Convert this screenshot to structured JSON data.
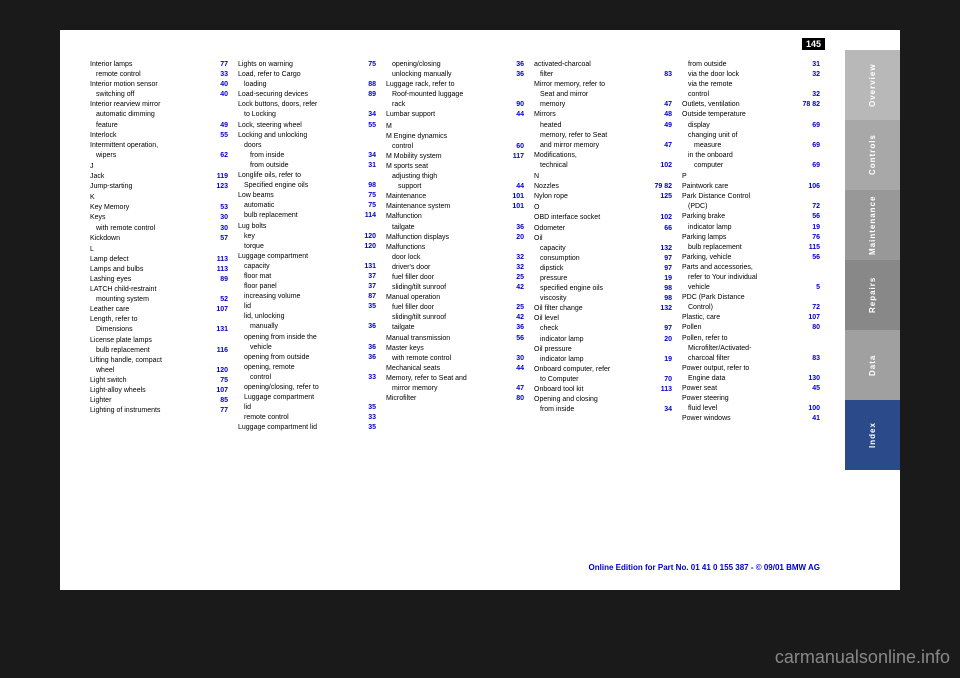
{
  "page_number": "145",
  "tabs": [
    "Overview",
    "Controls",
    "Maintenance",
    "Repairs",
    "Data",
    "Index"
  ],
  "footer": "Online Edition for Part No. 01 41 0 155 387 - © 09/01 BMW AG",
  "watermark": "carmanualsonline.info",
  "columns": [
    [
      {
        "t": "Interior lamps",
        "p": "77",
        "sub": 0
      },
      {
        "t": "remote control",
        "p": "33",
        "sub": 1
      },
      {
        "t": "Interior motion sensor",
        "p": "40",
        "sub": 0
      },
      {
        "t": "switching off",
        "p": "40",
        "sub": 1
      },
      {
        "t": "Interior rearview mirror",
        "p": "",
        "sub": 0
      },
      {
        "t": "automatic dimming",
        "p": "",
        "sub": 1
      },
      {
        "t": "feature",
        "p": "49",
        "sub": 1
      },
      {
        "t": "Interlock",
        "p": "55",
        "sub": 0
      },
      {
        "t": "Intermittent operation,",
        "p": "",
        "sub": 0
      },
      {
        "t": "wipers",
        "p": "62",
        "sub": 1
      },
      {
        "t": "",
        "p": "",
        "sub": 0
      },
      {
        "t": "J",
        "p": "",
        "sub": 0
      },
      {
        "t": "Jack",
        "p": "119",
        "sub": 0
      },
      {
        "t": "Jump-starting",
        "p": "123",
        "sub": 0
      },
      {
        "t": "",
        "p": "",
        "sub": 0
      },
      {
        "t": "K",
        "p": "",
        "sub": 0
      },
      {
        "t": "Key Memory",
        "p": "53",
        "sub": 0
      },
      {
        "t": "Keys",
        "p": "30",
        "sub": 0
      },
      {
        "t": "with remote control",
        "p": "30",
        "sub": 1
      },
      {
        "t": "Kickdown",
        "p": "57",
        "sub": 0
      },
      {
        "t": "",
        "p": "",
        "sub": 0
      },
      {
        "t": "L",
        "p": "",
        "sub": 0
      },
      {
        "t": "Lamp defect",
        "p": "113",
        "sub": 0
      },
      {
        "t": "Lamps and bulbs",
        "p": "113",
        "sub": 0
      },
      {
        "t": "Lashing eyes",
        "p": "89",
        "sub": 0
      },
      {
        "t": "LATCH child-restraint",
        "p": "",
        "sub": 0
      },
      {
        "t": "mounting system",
        "p": "52",
        "sub": 1
      },
      {
        "t": "Leather care",
        "p": "107",
        "sub": 0
      },
      {
        "t": "Length, refer to",
        "p": "",
        "sub": 0
      },
      {
        "t": "Dimensions",
        "p": "131",
        "sub": 1
      },
      {
        "t": "License plate lamps",
        "p": "",
        "sub": 0
      },
      {
        "t": "bulb replacement",
        "p": "116",
        "sub": 1
      },
      {
        "t": "Lifting handle, compact",
        "p": "",
        "sub": 0
      },
      {
        "t": "wheel",
        "p": "120",
        "sub": 1
      },
      {
        "t": "Light switch",
        "p": "75",
        "sub": 0
      },
      {
        "t": "Light-alloy wheels",
        "p": "107",
        "sub": 0
      },
      {
        "t": "Lighter",
        "p": "85",
        "sub": 0
      },
      {
        "t": "Lighting of instruments",
        "p": "77",
        "sub": 0
      }
    ],
    [
      {
        "t": "Lights on warning",
        "p": "75",
        "sub": 0
      },
      {
        "t": "Load, refer to Cargo",
        "p": "",
        "sub": 0
      },
      {
        "t": "loading",
        "p": "88",
        "sub": 1
      },
      {
        "t": "Load-securing devices",
        "p": "89",
        "sub": 0
      },
      {
        "t": "Lock buttons, doors, refer",
        "p": "",
        "sub": 0
      },
      {
        "t": "to Locking",
        "p": "34",
        "sub": 1
      },
      {
        "t": "Lock, steering wheel",
        "p": "55",
        "sub": 0
      },
      {
        "t": "Locking and unlocking",
        "p": "",
        "sub": 0
      },
      {
        "t": "doors",
        "p": "",
        "sub": 1
      },
      {
        "t": "from inside",
        "p": "34",
        "sub": 2
      },
      {
        "t": "from outside",
        "p": "31",
        "sub": 2
      },
      {
        "t": "Longlife oils, refer to",
        "p": "",
        "sub": 0
      },
      {
        "t": "Specified engine oils",
        "p": "98",
        "sub": 1
      },
      {
        "t": "Low beams",
        "p": "75",
        "sub": 0
      },
      {
        "t": "automatic",
        "p": "75",
        "sub": 1
      },
      {
        "t": "bulb replacement",
        "p": "114",
        "sub": 1
      },
      {
        "t": "Lug bolts",
        "p": "",
        "sub": 0
      },
      {
        "t": "key",
        "p": "120",
        "sub": 1
      },
      {
        "t": "torque",
        "p": "120",
        "sub": 1
      },
      {
        "t": "Luggage compartment",
        "p": "",
        "sub": 0
      },
      {
        "t": "capacity",
        "p": "131",
        "sub": 1
      },
      {
        "t": "floor mat",
        "p": "37",
        "sub": 1
      },
      {
        "t": "floor panel",
        "p": "37",
        "sub": 1
      },
      {
        "t": "increasing volume",
        "p": "87",
        "sub": 1
      },
      {
        "t": "lid",
        "p": "35",
        "sub": 1
      },
      {
        "t": "lid, unlocking",
        "p": "",
        "sub": 1
      },
      {
        "t": "manually",
        "p": "36",
        "sub": 2
      },
      {
        "t": "opening from inside the",
        "p": "",
        "sub": 1
      },
      {
        "t": "vehicle",
        "p": "36",
        "sub": 2
      },
      {
        "t": "opening from outside",
        "p": "36",
        "sub": 1
      },
      {
        "t": "opening, remote",
        "p": "",
        "sub": 1
      },
      {
        "t": "control",
        "p": "33",
        "sub": 2
      },
      {
        "t": "opening/closing, refer to",
        "p": "",
        "sub": 1
      },
      {
        "t": "Luggage compartment",
        "p": "",
        "sub": 1
      },
      {
        "t": "lid",
        "p": "35",
        "sub": 1
      },
      {
        "t": "remote control",
        "p": "33",
        "sub": 1
      },
      {
        "t": "Luggage compartment lid",
        "p": "35",
        "sub": 0
      }
    ],
    [
      {
        "t": "opening/closing",
        "p": "36",
        "sub": 1
      },
      {
        "t": "unlocking manually",
        "p": "36",
        "sub": 1
      },
      {
        "t": "Luggage rack, refer to",
        "p": "",
        "sub": 0
      },
      {
        "t": "Roof-mounted luggage",
        "p": "",
        "sub": 1
      },
      {
        "t": "rack",
        "p": "90",
        "sub": 1
      },
      {
        "t": "Lumbar support",
        "p": "44",
        "sub": 0
      },
      {
        "t": "",
        "p": "",
        "sub": 0
      },
      {
        "t": "M",
        "p": "",
        "sub": 0
      },
      {
        "t": "M Engine dynamics",
        "p": "",
        "sub": 0
      },
      {
        "t": "control",
        "p": "60",
        "sub": 1
      },
      {
        "t": "M Mobility system",
        "p": "117",
        "sub": 0
      },
      {
        "t": "M sports seat",
        "p": "",
        "sub": 0
      },
      {
        "t": "adjusting thigh",
        "p": "",
        "sub": 1
      },
      {
        "t": "support",
        "p": "44",
        "sub": 2
      },
      {
        "t": "Maintenance",
        "p": "101",
        "sub": 0
      },
      {
        "t": "Maintenance system",
        "p": "101",
        "sub": 0
      },
      {
        "t": "Malfunction",
        "p": "",
        "sub": 0
      },
      {
        "t": "tailgate",
        "p": "36",
        "sub": 1
      },
      {
        "t": "Malfunction displays",
        "p": "20",
        "sub": 0
      },
      {
        "t": "Malfunctions",
        "p": "",
        "sub": 0
      },
      {
        "t": "door lock",
        "p": "32",
        "sub": 1
      },
      {
        "t": "driver's door",
        "p": "32",
        "sub": 1
      },
      {
        "t": "fuel filler door",
        "p": "25",
        "sub": 1
      },
      {
        "t": "sliding/tilt sunroof",
        "p": "42",
        "sub": 1
      },
      {
        "t": "Manual operation",
        "p": "",
        "sub": 0
      },
      {
        "t": "fuel filler door",
        "p": "25",
        "sub": 1
      },
      {
        "t": "sliding/tilt sunroof",
        "p": "42",
        "sub": 1
      },
      {
        "t": "tailgate",
        "p": "36",
        "sub": 1
      },
      {
        "t": "Manual transmission",
        "p": "56",
        "sub": 0
      },
      {
        "t": "Master keys",
        "p": "",
        "sub": 0
      },
      {
        "t": "with remote control",
        "p": "30",
        "sub": 1
      },
      {
        "t": "Mechanical seats",
        "p": "44",
        "sub": 0
      },
      {
        "t": "Memory, refer to Seat and",
        "p": "",
        "sub": 0
      },
      {
        "t": "mirror memory",
        "p": "47",
        "sub": 1
      },
      {
        "t": "Microfilter",
        "p": "80",
        "sub": 0
      }
    ],
    [
      {
        "t": "activated-charcoal",
        "p": "",
        "sub": 0
      },
      {
        "t": "filter",
        "p": "83",
        "sub": 1
      },
      {
        "t": "Mirror memory, refer to",
        "p": "",
        "sub": 0
      },
      {
        "t": "Seat and mirror",
        "p": "",
        "sub": 1
      },
      {
        "t": "memory",
        "p": "47",
        "sub": 1
      },
      {
        "t": "Mirrors",
        "p": "48",
        "sub": 0
      },
      {
        "t": "heated",
        "p": "49",
        "sub": 1
      },
      {
        "t": "memory, refer to Seat",
        "p": "",
        "sub": 1
      },
      {
        "t": "and mirror memory",
        "p": "47",
        "sub": 1
      },
      {
        "t": "Modifications,",
        "p": "",
        "sub": 0
      },
      {
        "t": "technical",
        "p": "102",
        "sub": 1
      },
      {
        "t": "",
        "p": "",
        "sub": 0
      },
      {
        "t": "N",
        "p": "",
        "sub": 0
      },
      {
        "t": "Nozzles",
        "p": "79  82",
        "sub": 0
      },
      {
        "t": "Nylon rope",
        "p": "125",
        "sub": 0
      },
      {
        "t": "",
        "p": "",
        "sub": 0
      },
      {
        "t": "O",
        "p": "",
        "sub": 0
      },
      {
        "t": "OBD interface socket",
        "p": "102",
        "sub": 0
      },
      {
        "t": "Odometer",
        "p": "66",
        "sub": 0
      },
      {
        "t": "Oil",
        "p": "",
        "sub": 0
      },
      {
        "t": "capacity",
        "p": "132",
        "sub": 1
      },
      {
        "t": "consumption",
        "p": "97",
        "sub": 1
      },
      {
        "t": "dipstick",
        "p": "97",
        "sub": 1
      },
      {
        "t": "pressure",
        "p": "19",
        "sub": 1
      },
      {
        "t": "specified engine oils",
        "p": "98",
        "sub": 1
      },
      {
        "t": "viscosity",
        "p": "98",
        "sub": 1
      },
      {
        "t": "Oil filter change",
        "p": "132",
        "sub": 0
      },
      {
        "t": "Oil level",
        "p": "",
        "sub": 0
      },
      {
        "t": "check",
        "p": "97",
        "sub": 1
      },
      {
        "t": "indicator lamp",
        "p": "20",
        "sub": 1
      },
      {
        "t": "Oil pressure",
        "p": "",
        "sub": 0
      },
      {
        "t": "indicator lamp",
        "p": "19",
        "sub": 1
      },
      {
        "t": "Onboard computer, refer",
        "p": "",
        "sub": 0
      },
      {
        "t": "to Computer",
        "p": "70",
        "sub": 1
      },
      {
        "t": "Onboard tool kit",
        "p": "113",
        "sub": 0
      },
      {
        "t": "Opening and closing",
        "p": "",
        "sub": 0
      },
      {
        "t": "from inside",
        "p": "34",
        "sub": 1
      }
    ],
    [
      {
        "t": "from outside",
        "p": "31",
        "sub": 1
      },
      {
        "t": "via the door lock",
        "p": "32",
        "sub": 1
      },
      {
        "t": "via the remote",
        "p": "",
        "sub": 1
      },
      {
        "t": "control",
        "p": "32",
        "sub": 1
      },
      {
        "t": "Outlets, ventilation",
        "p": "78  82",
        "sub": 0
      },
      {
        "t": "Outside temperature",
        "p": "",
        "sub": 0
      },
      {
        "t": "display",
        "p": "69",
        "sub": 1
      },
      {
        "t": "changing unit of",
        "p": "",
        "sub": 1
      },
      {
        "t": "measure",
        "p": "69",
        "sub": 2
      },
      {
        "t": "in the onboard",
        "p": "",
        "sub": 1
      },
      {
        "t": "computer",
        "p": "69",
        "sub": 2
      },
      {
        "t": "",
        "p": "",
        "sub": 0
      },
      {
        "t": "P",
        "p": "",
        "sub": 0
      },
      {
        "t": "Paintwork care",
        "p": "106",
        "sub": 0
      },
      {
        "t": "Park Distance Control",
        "p": "",
        "sub": 0
      },
      {
        "t": "(PDC)",
        "p": "72",
        "sub": 1
      },
      {
        "t": "Parking brake",
        "p": "56",
        "sub": 0
      },
      {
        "t": "indicator lamp",
        "p": "19",
        "sub": 1
      },
      {
        "t": "Parking lamps",
        "p": "76",
        "sub": 0
      },
      {
        "t": "bulb replacement",
        "p": "115",
        "sub": 1
      },
      {
        "t": "Parking, vehicle",
        "p": "56",
        "sub": 0
      },
      {
        "t": "Parts and accessories,",
        "p": "",
        "sub": 0
      },
      {
        "t": "refer to Your individual",
        "p": "",
        "sub": 1
      },
      {
        "t": "vehicle",
        "p": "5",
        "sub": 1
      },
      {
        "t": "PDC (Park Distance",
        "p": "",
        "sub": 0
      },
      {
        "t": "Control)",
        "p": "72",
        "sub": 1
      },
      {
        "t": "Plastic, care",
        "p": "107",
        "sub": 0
      },
      {
        "t": "Pollen",
        "p": "80",
        "sub": 0
      },
      {
        "t": "Pollen, refer to",
        "p": "",
        "sub": 0
      },
      {
        "t": "Microfilter/Activated-",
        "p": "",
        "sub": 1
      },
      {
        "t": "charcoal filter",
        "p": "83",
        "sub": 1
      },
      {
        "t": "Power output, refer to",
        "p": "",
        "sub": 0
      },
      {
        "t": "Engine data",
        "p": "130",
        "sub": 1
      },
      {
        "t": "Power seat",
        "p": "45",
        "sub": 0
      },
      {
        "t": "Power steering",
        "p": "",
        "sub": 0
      },
      {
        "t": "fluid level",
        "p": "100",
        "sub": 1
      },
      {
        "t": "Power windows",
        "p": "41",
        "sub": 0
      }
    ]
  ]
}
